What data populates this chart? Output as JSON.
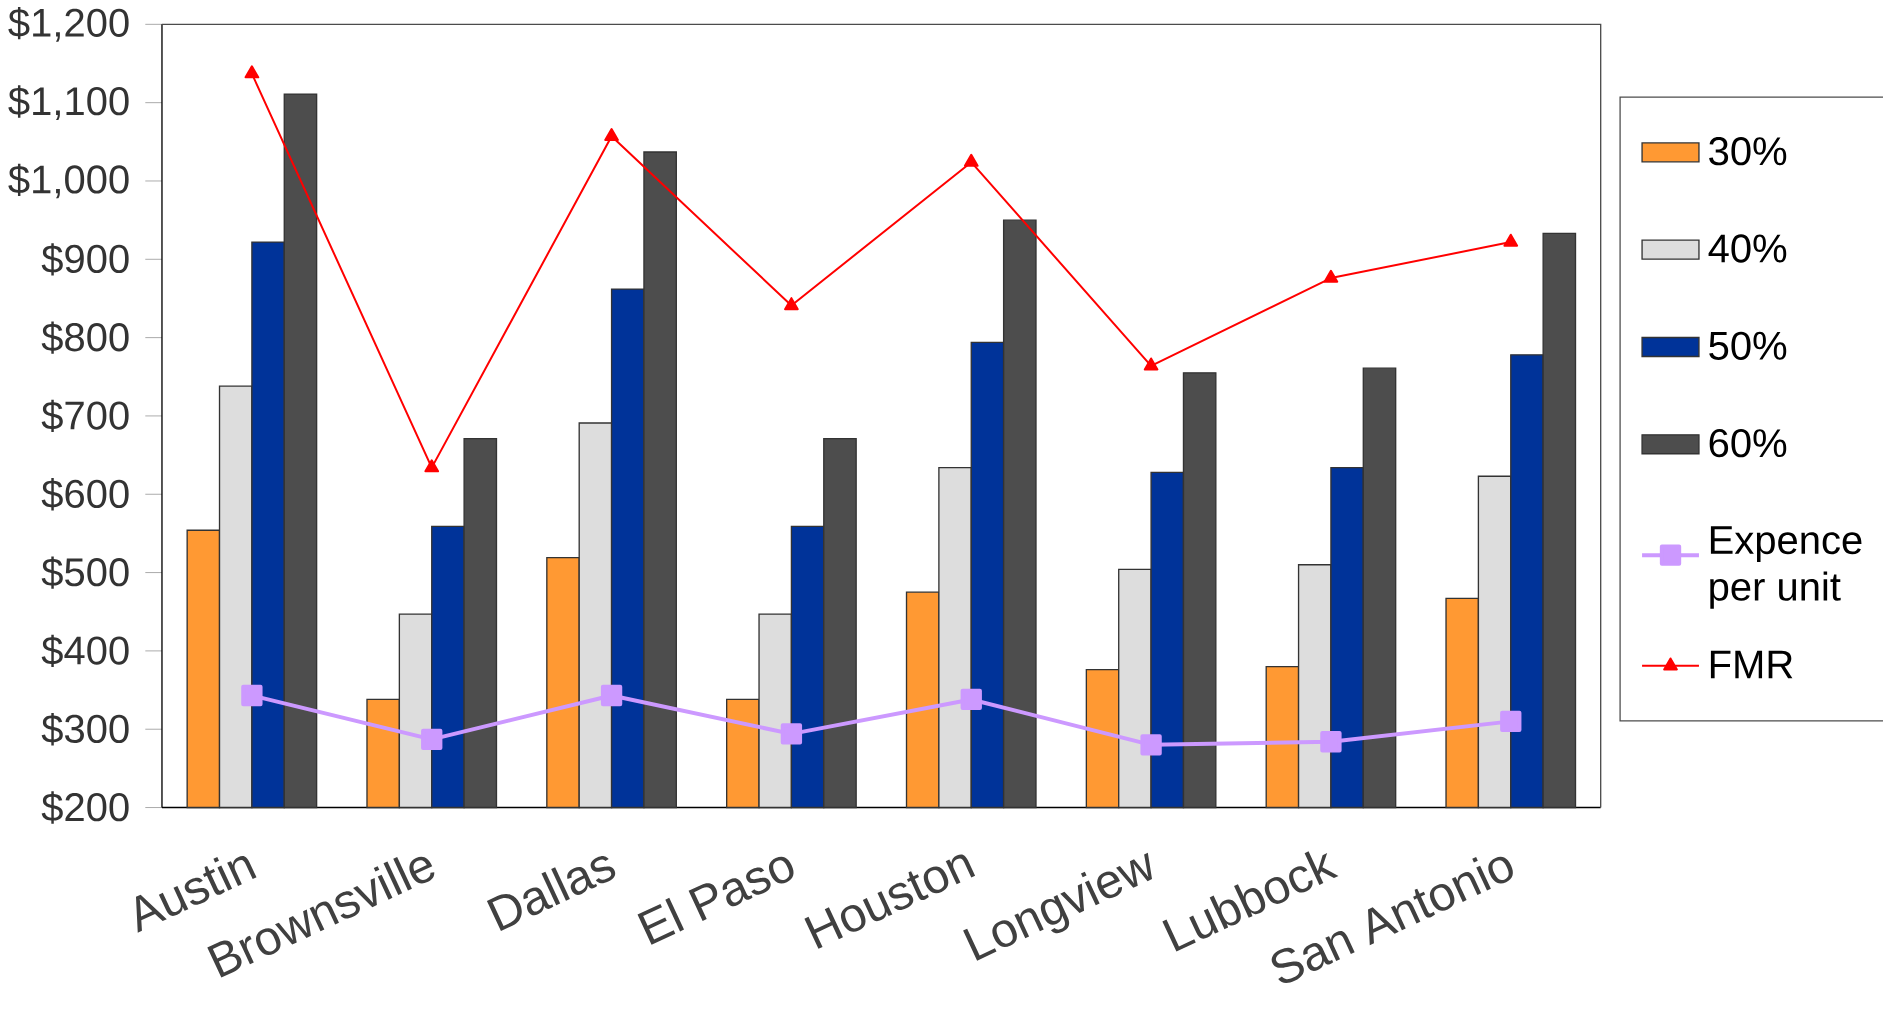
{
  "chart_data": {
    "type": "bar",
    "categories": [
      "Austin",
      "Brownsville",
      "Dallas",
      "El Paso",
      "Houston",
      "Longview",
      "Lubbock",
      "San Antonio"
    ],
    "series": [
      {
        "name": "30%",
        "color": "#ff9933",
        "values": [
          554,
          338,
          519,
          338,
          475,
          376,
          380,
          467
        ]
      },
      {
        "name": "40%",
        "color": "#dddddd",
        "values": [
          738,
          447,
          691,
          447,
          634,
          504,
          510,
          623
        ]
      },
      {
        "name": "50%",
        "color": "#003399",
        "values": [
          922,
          559,
          862,
          559,
          794,
          628,
          634,
          778
        ]
      },
      {
        "name": "60%",
        "color": "#4d4d4d",
        "values": [
          1111,
          671,
          1037,
          671,
          950,
          755,
          761,
          933
        ]
      },
      {
        "name": "Expence per unit",
        "type": "line",
        "marker": "square",
        "color": "#cc99ff",
        "values": [
          343,
          287,
          343,
          294,
          338,
          280,
          284,
          310
        ]
      },
      {
        "name": "FMR",
        "type": "line",
        "marker": "triangle",
        "color": "#ff0000",
        "values": [
          1137,
          634,
          1057,
          841,
          1024,
          764,
          876,
          922
        ]
      }
    ],
    "ylim": [
      200,
      1200
    ],
    "yticks": [
      {
        "value": 200,
        "label": "$200"
      },
      {
        "value": 300,
        "label": "$300"
      },
      {
        "value": 400,
        "label": "$400"
      },
      {
        "value": 500,
        "label": "$500"
      },
      {
        "value": 600,
        "label": "$600"
      },
      {
        "value": 700,
        "label": "$700"
      },
      {
        "value": 800,
        "label": "$800"
      },
      {
        "value": 900,
        "label": "$900"
      },
      {
        "value": 1000,
        "label": "$1,000"
      },
      {
        "value": 1100,
        "label": "$1,100"
      },
      {
        "value": 1200,
        "label": "$1,200"
      }
    ],
    "grid": false,
    "legend": "right"
  }
}
